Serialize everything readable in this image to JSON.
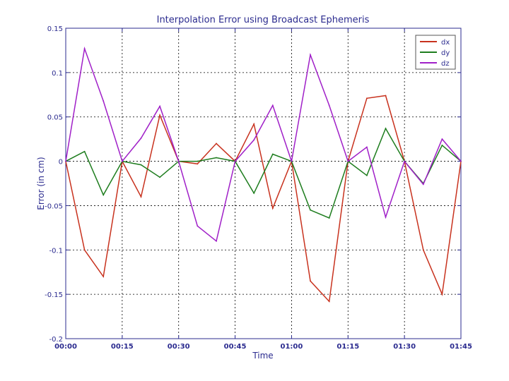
{
  "chart_data": {
    "type": "line",
    "title": "Interpolation Error using Broadcast Ephemeris",
    "xlabel": "Time",
    "ylabel": "Error (in cm)",
    "x": [
      "00:00",
      "00:05",
      "00:10",
      "00:15",
      "00:20",
      "00:25",
      "00:30",
      "00:35",
      "00:40",
      "00:45",
      "00:50",
      "00:55",
      "01:00",
      "01:05",
      "01:10",
      "01:15",
      "01:20",
      "01:25",
      "01:30",
      "01:35",
      "01:40",
      "01:45"
    ],
    "xticks": [
      "00:00",
      "00:15",
      "00:30",
      "00:45",
      "01:00",
      "01:15",
      "01:30",
      "01:45"
    ],
    "yticks": [
      "0.15",
      "0.1",
      "0.05",
      "0",
      "-0.05",
      "-0.1",
      "-0.15",
      "-0.2"
    ],
    "ytick_values": [
      0.15,
      0.1,
      0.05,
      0,
      -0.05,
      -0.1,
      -0.15,
      -0.2
    ],
    "ylim": [
      -0.2,
      0.15
    ],
    "grid": true,
    "legend_position": "top-right",
    "series": [
      {
        "name": "dx",
        "color": "#c8321e",
        "values": [
          0,
          -0.1,
          -0.13,
          0,
          -0.04,
          0.052,
          0,
          -0.003,
          0.02,
          0,
          0.042,
          -0.053,
          0,
          -0.135,
          -0.158,
          0,
          0.071,
          0.074,
          0,
          -0.1,
          -0.15,
          0
        ]
      },
      {
        "name": "dy",
        "color": "#1e7d1e",
        "values": [
          0,
          0.011,
          -0.038,
          0,
          -0.004,
          -0.018,
          0,
          0,
          0.004,
          0,
          -0.036,
          0.008,
          0,
          -0.055,
          -0.064,
          0,
          -0.016,
          0.037,
          0,
          -0.025,
          0.018,
          0
        ]
      },
      {
        "name": "dz",
        "color": "#a020c8",
        "values": [
          0,
          0.127,
          0.068,
          0,
          0.026,
          0.062,
          0,
          -0.073,
          -0.09,
          0,
          0.024,
          0.063,
          0,
          0.12,
          0.063,
          0,
          0.016,
          -0.063,
          0,
          -0.026,
          0.025,
          0
        ]
      }
    ]
  }
}
